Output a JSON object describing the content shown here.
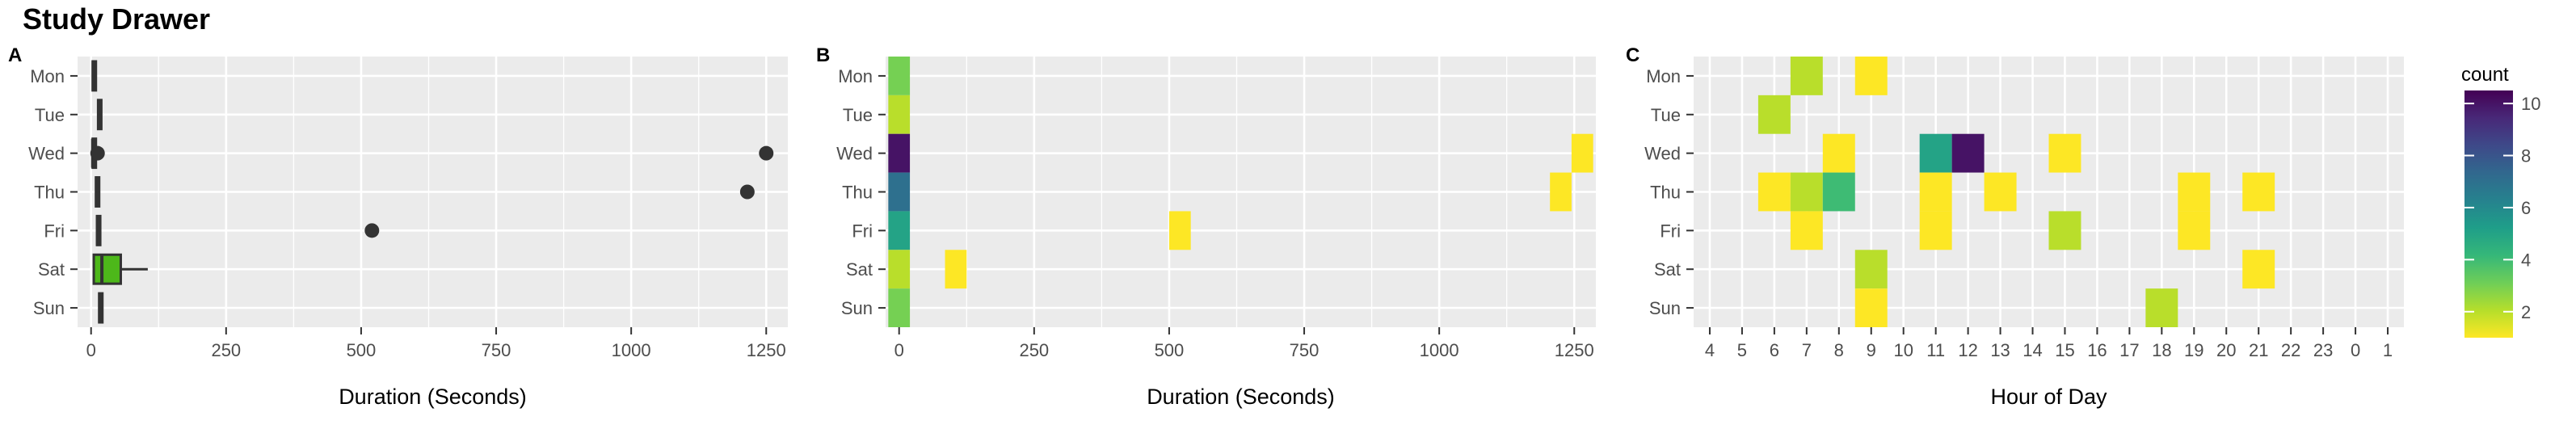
{
  "title": "Study Drawer",
  "colors": {
    "panel_bg": "#ebebeb",
    "box_fill": "#4db81a",
    "box_stroke": "#333333",
    "point": "#333333",
    "viridis": [
      "#440154",
      "#482878",
      "#3e4989",
      "#31688e",
      "#26828e",
      "#1f9e89",
      "#35b779",
      "#6ece58",
      "#b5de2b",
      "#fde725"
    ]
  },
  "chart_data": [
    {
      "panel": "A",
      "type": "boxplot",
      "xlabel": "Duration (Seconds)",
      "categories": [
        "Mon",
        "Tue",
        "Wed",
        "Thu",
        "Fri",
        "Sat",
        "Sun"
      ],
      "xlim": [
        -25,
        1290
      ],
      "xticks": [
        0,
        250,
        500,
        750,
        1000,
        1250
      ],
      "boxes": [
        {
          "cat": "Mon",
          "min": 2,
          "q1": 3,
          "median": 4,
          "q3": 5,
          "max": 7
        },
        {
          "cat": "Tue",
          "min": 12,
          "q1": 13,
          "median": 14,
          "q3": 15,
          "max": 16
        },
        {
          "cat": "Wed",
          "min": 2,
          "q1": 3,
          "median": 3,
          "q3": 4,
          "max": 5
        },
        {
          "cat": "Thu",
          "min": 8,
          "q1": 9,
          "median": 10,
          "q3": 11,
          "max": 12
        },
        {
          "cat": "Fri",
          "min": 10,
          "q1": 11,
          "median": 12,
          "q3": 13,
          "max": 14
        },
        {
          "cat": "Sat",
          "min": 5,
          "q1": 5,
          "median": 20,
          "q3": 55,
          "max": 105
        },
        {
          "cat": "Sun",
          "min": 14,
          "q1": 15,
          "median": 16,
          "q3": 17,
          "max": 18
        }
      ],
      "outliers": [
        {
          "cat": "Wed",
          "x": 12
        },
        {
          "cat": "Wed",
          "x": 1250
        },
        {
          "cat": "Thu",
          "x": 1215
        },
        {
          "cat": "Fri",
          "x": 520
        }
      ]
    },
    {
      "panel": "B",
      "type": "heatmap",
      "xlabel": "Duration (Seconds)",
      "categories": [
        "Mon",
        "Tue",
        "Wed",
        "Thu",
        "Fri",
        "Sat",
        "Sun"
      ],
      "xlim": [
        -25,
        1290
      ],
      "xticks": [
        0,
        250,
        500,
        750,
        1000,
        1250
      ],
      "bin_width": 40,
      "cells": [
        {
          "cat": "Mon",
          "x": 0,
          "count": 3
        },
        {
          "cat": "Tue",
          "x": 0,
          "count": 2
        },
        {
          "cat": "Wed",
          "x": 0,
          "count": 10
        },
        {
          "cat": "Thu",
          "x": 0,
          "count": 7
        },
        {
          "cat": "Fri",
          "x": 0,
          "count": 5
        },
        {
          "cat": "Sat",
          "x": 0,
          "count": 2
        },
        {
          "cat": "Sun",
          "x": 0,
          "count": 3
        },
        {
          "cat": "Wed",
          "x": 1265,
          "count": 1
        },
        {
          "cat": "Thu",
          "x": 1225,
          "count": 1
        },
        {
          "cat": "Fri",
          "x": 520,
          "count": 1
        },
        {
          "cat": "Sat",
          "x": 105,
          "count": 1
        }
      ]
    },
    {
      "panel": "C",
      "type": "heatmap",
      "xlabel": "Hour of Day",
      "categories": [
        "Mon",
        "Tue",
        "Wed",
        "Thu",
        "Fri",
        "Sat",
        "Sun"
      ],
      "x_categories": [
        "4",
        "5",
        "6",
        "7",
        "8",
        "9",
        "10",
        "11",
        "12",
        "13",
        "14",
        "15",
        "16",
        "17",
        "18",
        "19",
        "20",
        "21",
        "22",
        "23",
        "0",
        "1"
      ],
      "cells": [
        {
          "cat": "Mon",
          "hour": "7",
          "count": 2
        },
        {
          "cat": "Mon",
          "hour": "9",
          "count": 1
        },
        {
          "cat": "Tue",
          "hour": "6",
          "count": 2
        },
        {
          "cat": "Wed",
          "hour": "8",
          "count": 1
        },
        {
          "cat": "Wed",
          "hour": "11",
          "count": 5
        },
        {
          "cat": "Wed",
          "hour": "12",
          "count": 10
        },
        {
          "cat": "Wed",
          "hour": "15",
          "count": 1
        },
        {
          "cat": "Thu",
          "hour": "6",
          "count": 1
        },
        {
          "cat": "Thu",
          "hour": "7",
          "count": 2
        },
        {
          "cat": "Thu",
          "hour": "8",
          "count": 4
        },
        {
          "cat": "Thu",
          "hour": "11",
          "count": 1
        },
        {
          "cat": "Thu",
          "hour": "13",
          "count": 1
        },
        {
          "cat": "Thu",
          "hour": "19",
          "count": 1
        },
        {
          "cat": "Thu",
          "hour": "21",
          "count": 1
        },
        {
          "cat": "Fri",
          "hour": "7",
          "count": 1
        },
        {
          "cat": "Fri",
          "hour": "11",
          "count": 1
        },
        {
          "cat": "Fri",
          "hour": "15",
          "count": 2
        },
        {
          "cat": "Fri",
          "hour": "19",
          "count": 1
        },
        {
          "cat": "Sat",
          "hour": "9",
          "count": 2
        },
        {
          "cat": "Sat",
          "hour": "21",
          "count": 1
        },
        {
          "cat": "Sun",
          "hour": "9",
          "count": 1
        },
        {
          "cat": "Sun",
          "hour": "18",
          "count": 2
        }
      ]
    }
  ],
  "panel_labels": [
    "A",
    "B",
    "C"
  ],
  "legend": {
    "title": "count",
    "position": "right",
    "range": [
      1,
      10.5
    ],
    "ticks": [
      2,
      4,
      6,
      8,
      10
    ]
  }
}
